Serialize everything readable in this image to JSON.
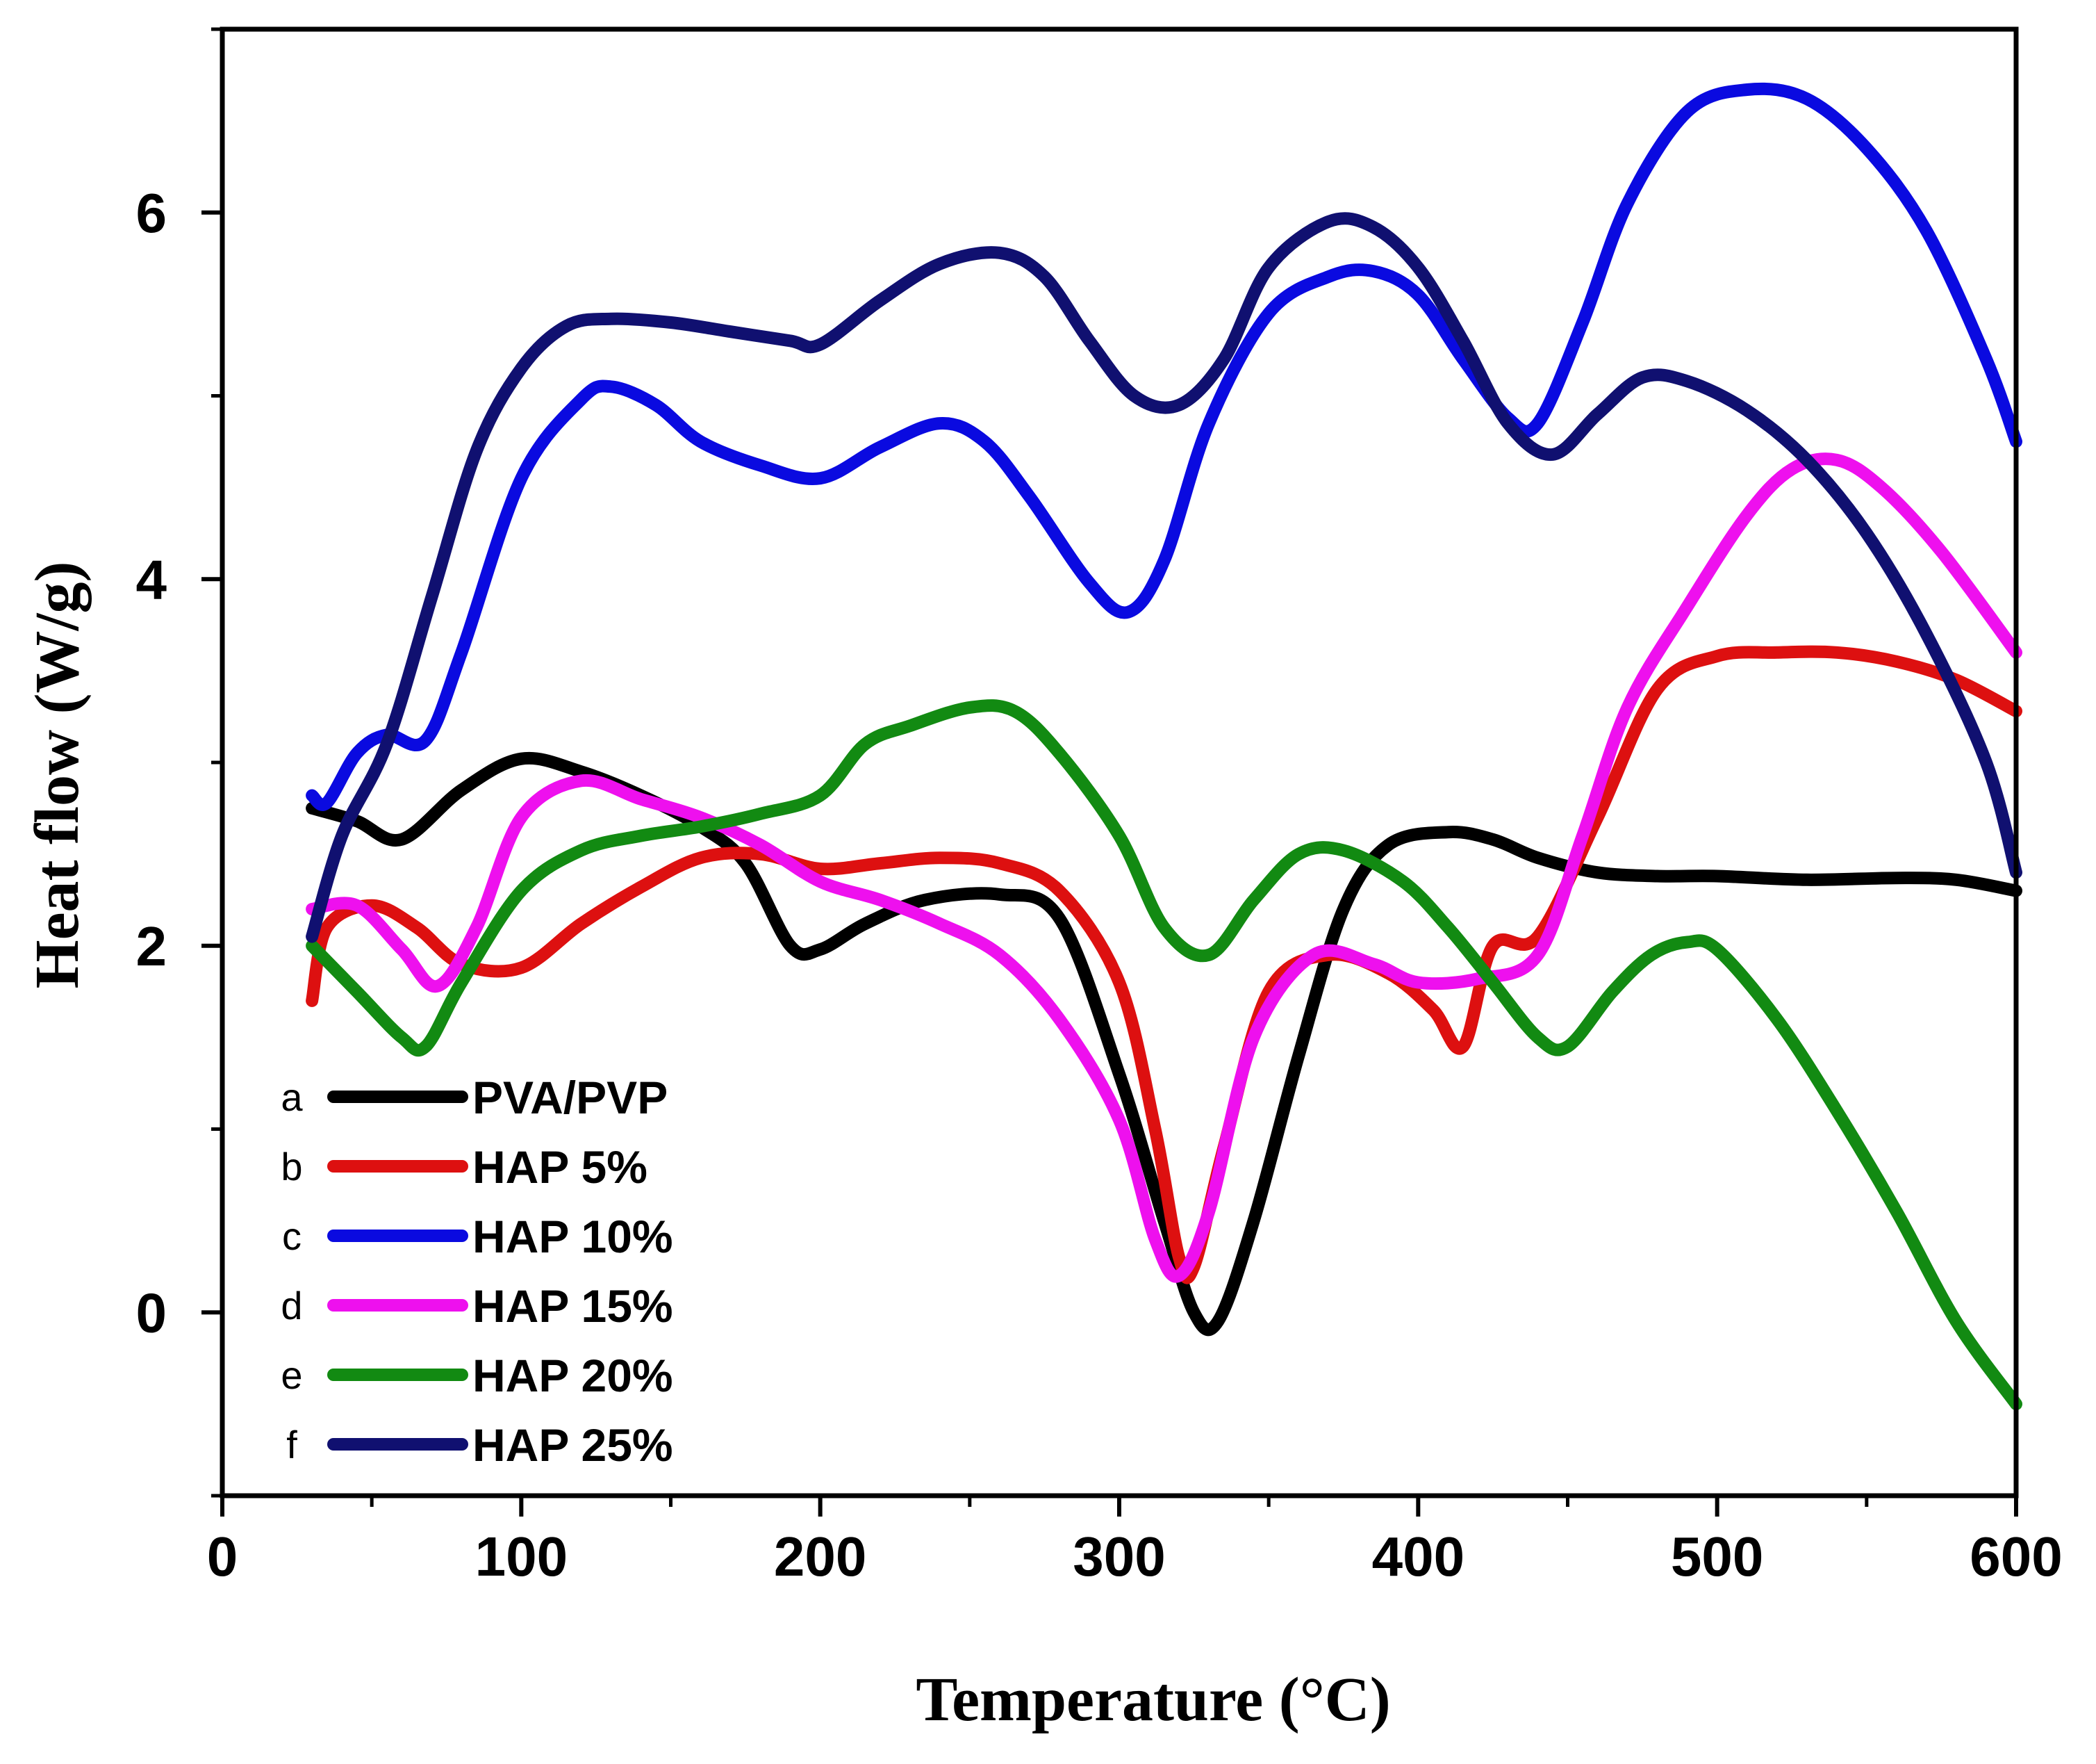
{
  "chart_data": {
    "type": "line",
    "title": "",
    "xlabel": "Temperature (°C)",
    "ylabel": "Heat flow (W/g)",
    "xlim": [
      0,
      600
    ],
    "ylim": [
      -1,
      7
    ],
    "xticks": [
      0,
      100,
      200,
      300,
      400,
      500,
      600
    ],
    "yticks": [
      0,
      2,
      4,
      6
    ],
    "xtick_labels": [
      "0",
      "100",
      "200",
      "300",
      "400",
      "500",
      "600"
    ],
    "ytick_labels": [
      "0",
      "2",
      "4",
      "6"
    ],
    "grid": false,
    "legend_position": "bottom-left",
    "series": [
      {
        "letter": "a",
        "name": "PVA/PVP",
        "color": "#000000",
        "points": [
          [
            30,
            2.75
          ],
          [
            45,
            2.68
          ],
          [
            60,
            2.58
          ],
          [
            80,
            2.85
          ],
          [
            100,
            3.02
          ],
          [
            120,
            2.95
          ],
          [
            140,
            2.82
          ],
          [
            160,
            2.65
          ],
          [
            175,
            2.45
          ],
          [
            190,
            2.0
          ],
          [
            200,
            1.98
          ],
          [
            215,
            2.12
          ],
          [
            235,
            2.25
          ],
          [
            260,
            2.28
          ],
          [
            280,
            2.15
          ],
          [
            300,
            1.3
          ],
          [
            315,
            0.5
          ],
          [
            325,
            0.0
          ],
          [
            333,
            -0.05
          ],
          [
            345,
            0.5
          ],
          [
            360,
            1.4
          ],
          [
            375,
            2.2
          ],
          [
            390,
            2.55
          ],
          [
            410,
            2.62
          ],
          [
            425,
            2.58
          ],
          [
            440,
            2.48
          ],
          [
            460,
            2.4
          ],
          [
            480,
            2.38
          ],
          [
            500,
            2.38
          ],
          [
            530,
            2.36
          ],
          [
            560,
            2.37
          ],
          [
            580,
            2.36
          ],
          [
            600,
            2.3
          ]
        ]
      },
      {
        "letter": "b",
        "name": "HAP 5%",
        "color": "#dd1010",
        "points": [
          [
            30,
            1.7
          ],
          [
            35,
            2.1
          ],
          [
            50,
            2.22
          ],
          [
            65,
            2.1
          ],
          [
            80,
            1.9
          ],
          [
            100,
            1.88
          ],
          [
            120,
            2.12
          ],
          [
            140,
            2.32
          ],
          [
            160,
            2.48
          ],
          [
            180,
            2.5
          ],
          [
            200,
            2.42
          ],
          [
            220,
            2.45
          ],
          [
            240,
            2.48
          ],
          [
            260,
            2.45
          ],
          [
            280,
            2.3
          ],
          [
            300,
            1.8
          ],
          [
            312,
            1.0
          ],
          [
            320,
            0.3
          ],
          [
            325,
            0.25
          ],
          [
            335,
            0.9
          ],
          [
            350,
            1.75
          ],
          [
            370,
            1.95
          ],
          [
            390,
            1.85
          ],
          [
            405,
            1.65
          ],
          [
            415,
            1.45
          ],
          [
            425,
            2.0
          ],
          [
            440,
            2.05
          ],
          [
            460,
            2.7
          ],
          [
            480,
            3.4
          ],
          [
            500,
            3.58
          ],
          [
            520,
            3.6
          ],
          [
            540,
            3.6
          ],
          [
            560,
            3.55
          ],
          [
            580,
            3.45
          ],
          [
            600,
            3.28
          ]
        ]
      },
      {
        "letter": "c",
        "name": "HAP 10%",
        "color": "#0a0ae0",
        "points": [
          [
            30,
            2.82
          ],
          [
            35,
            2.78
          ],
          [
            45,
            3.05
          ],
          [
            55,
            3.15
          ],
          [
            68,
            3.12
          ],
          [
            80,
            3.6
          ],
          [
            100,
            4.55
          ],
          [
            120,
            4.98
          ],
          [
            130,
            5.05
          ],
          [
            145,
            4.95
          ],
          [
            160,
            4.75
          ],
          [
            180,
            4.62
          ],
          [
            200,
            4.55
          ],
          [
            220,
            4.72
          ],
          [
            240,
            4.85
          ],
          [
            255,
            4.75
          ],
          [
            270,
            4.45
          ],
          [
            290,
            3.98
          ],
          [
            303,
            3.82
          ],
          [
            315,
            4.1
          ],
          [
            330,
            4.85
          ],
          [
            350,
            5.45
          ],
          [
            370,
            5.65
          ],
          [
            385,
            5.68
          ],
          [
            400,
            5.55
          ],
          [
            415,
            5.2
          ],
          [
            430,
            4.88
          ],
          [
            440,
            4.85
          ],
          [
            455,
            5.4
          ],
          [
            470,
            6.05
          ],
          [
            490,
            6.55
          ],
          [
            510,
            6.67
          ],
          [
            530,
            6.62
          ],
          [
            550,
            6.35
          ],
          [
            570,
            5.9
          ],
          [
            590,
            5.2
          ],
          [
            600,
            4.75
          ]
        ]
      },
      {
        "letter": "d",
        "name": "HAP 15%",
        "color": "#ee10ee",
        "points": [
          [
            30,
            2.2
          ],
          [
            45,
            2.22
          ],
          [
            60,
            1.98
          ],
          [
            72,
            1.78
          ],
          [
            85,
            2.1
          ],
          [
            100,
            2.7
          ],
          [
            120,
            2.9
          ],
          [
            140,
            2.8
          ],
          [
            160,
            2.7
          ],
          [
            180,
            2.55
          ],
          [
            200,
            2.35
          ],
          [
            220,
            2.25
          ],
          [
            240,
            2.12
          ],
          [
            260,
            1.95
          ],
          [
            280,
            1.6
          ],
          [
            300,
            1.05
          ],
          [
            312,
            0.4
          ],
          [
            320,
            0.2
          ],
          [
            330,
            0.55
          ],
          [
            345,
            1.5
          ],
          [
            365,
            1.95
          ],
          [
            385,
            1.9
          ],
          [
            400,
            1.8
          ],
          [
            420,
            1.82
          ],
          [
            440,
            1.95
          ],
          [
            455,
            2.6
          ],
          [
            470,
            3.3
          ],
          [
            490,
            3.85
          ],
          [
            510,
            4.35
          ],
          [
            525,
            4.6
          ],
          [
            540,
            4.65
          ],
          [
            555,
            4.5
          ],
          [
            575,
            4.15
          ],
          [
            600,
            3.6
          ]
        ]
      },
      {
        "letter": "e",
        "name": "HAP 20%",
        "color": "#128a12",
        "points": [
          [
            30,
            2.0
          ],
          [
            45,
            1.75
          ],
          [
            60,
            1.5
          ],
          [
            68,
            1.45
          ],
          [
            80,
            1.8
          ],
          [
            100,
            2.3
          ],
          [
            120,
            2.52
          ],
          [
            140,
            2.6
          ],
          [
            160,
            2.65
          ],
          [
            180,
            2.72
          ],
          [
            200,
            2.82
          ],
          [
            215,
            3.1
          ],
          [
            230,
            3.2
          ],
          [
            250,
            3.3
          ],
          [
            265,
            3.28
          ],
          [
            280,
            3.05
          ],
          [
            300,
            2.6
          ],
          [
            315,
            2.1
          ],
          [
            330,
            1.95
          ],
          [
            345,
            2.25
          ],
          [
            360,
            2.5
          ],
          [
            375,
            2.52
          ],
          [
            395,
            2.35
          ],
          [
            410,
            2.1
          ],
          [
            425,
            1.8
          ],
          [
            440,
            1.5
          ],
          [
            450,
            1.45
          ],
          [
            465,
            1.75
          ],
          [
            478,
            1.95
          ],
          [
            490,
            2.02
          ],
          [
            500,
            1.98
          ],
          [
            520,
            1.6
          ],
          [
            540,
            1.1
          ],
          [
            560,
            0.55
          ],
          [
            580,
            -0.05
          ],
          [
            600,
            -0.5
          ]
        ]
      },
      {
        "letter": "f",
        "name": "HAP 25%",
        "color": "#101070",
        "points": [
          [
            30,
            2.05
          ],
          [
            40,
            2.6
          ],
          [
            55,
            3.1
          ],
          [
            70,
            3.9
          ],
          [
            85,
            4.7
          ],
          [
            100,
            5.15
          ],
          [
            115,
            5.38
          ],
          [
            130,
            5.42
          ],
          [
            150,
            5.4
          ],
          [
            170,
            5.35
          ],
          [
            190,
            5.3
          ],
          [
            200,
            5.28
          ],
          [
            220,
            5.52
          ],
          [
            240,
            5.72
          ],
          [
            260,
            5.78
          ],
          [
            275,
            5.65
          ],
          [
            290,
            5.3
          ],
          [
            305,
            5.0
          ],
          [
            320,
            4.95
          ],
          [
            335,
            5.2
          ],
          [
            350,
            5.7
          ],
          [
            370,
            5.95
          ],
          [
            385,
            5.92
          ],
          [
            400,
            5.7
          ],
          [
            415,
            5.3
          ],
          [
            430,
            4.85
          ],
          [
            445,
            4.68
          ],
          [
            460,
            4.9
          ],
          [
            475,
            5.1
          ],
          [
            490,
            5.08
          ],
          [
            510,
            4.92
          ],
          [
            530,
            4.65
          ],
          [
            550,
            4.25
          ],
          [
            570,
            3.7
          ],
          [
            590,
            3.0
          ],
          [
            600,
            2.4
          ]
        ]
      }
    ]
  }
}
